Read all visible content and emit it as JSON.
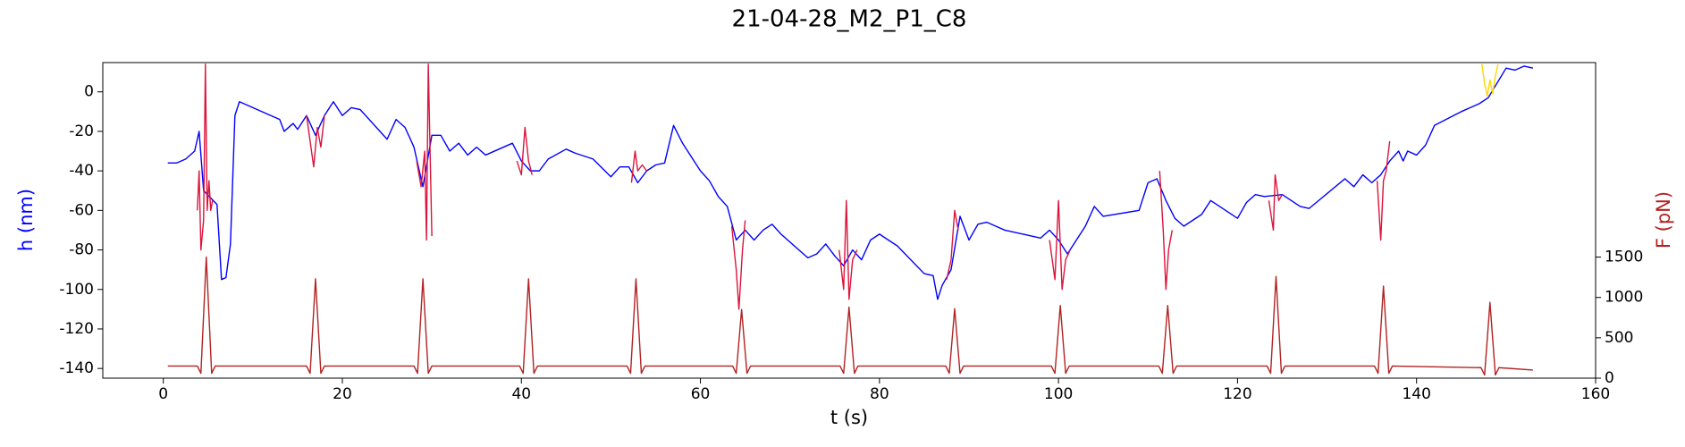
{
  "chart_data": {
    "type": "line",
    "title": "21-04-28_M2_P1_C8",
    "xlabel": "t (s)",
    "ylabel": "h (nm)",
    "y2label": "F (pN)",
    "ylabel_color": "#0000ff",
    "y2label_color": "#b22222",
    "xlim": [
      -6.76,
      160
    ],
    "xticks": [
      0,
      20,
      40,
      60,
      80,
      100,
      120,
      140,
      160
    ],
    "ylim": [
      -144.9,
      14.8
    ],
    "yticks": [
      -140,
      -120,
      -100,
      -80,
      -60,
      -40,
      -20,
      0
    ],
    "y2lim": [
      0,
      3910
    ],
    "y2ticks": [
      0,
      500,
      1000,
      1500
    ],
    "series": [
      {
        "color": "#0000ff",
        "x": [
          0.5,
          1.5,
          2.5,
          3.5,
          4,
          4.5,
          6,
          6.5,
          7,
          7.5,
          8,
          8.5,
          10,
          13,
          13.5,
          14.5,
          15,
          16,
          17,
          18,
          19,
          20,
          21,
          22,
          25,
          26,
          27,
          28,
          29,
          30,
          31,
          32,
          33,
          34,
          35,
          36,
          39,
          40,
          41,
          42,
          43,
          45,
          46,
          48,
          50,
          51,
          52,
          53,
          54,
          55,
          56,
          57,
          58,
          60,
          61,
          62,
          63,
          64,
          65,
          66,
          67,
          68,
          69,
          72,
          73,
          74,
          75,
          76,
          77,
          78,
          79,
          80,
          82,
          85,
          86,
          86.5,
          87,
          88,
          89,
          90,
          91,
          92,
          94,
          96,
          98,
          99,
          100,
          101,
          102,
          103,
          104,
          105,
          109,
          110,
          111,
          112,
          113,
          114,
          116,
          117,
          120,
          121,
          122,
          123,
          125,
          127,
          128,
          132,
          133,
          134,
          135,
          136,
          137,
          138,
          138.5,
          139,
          140,
          141,
          142,
          145,
          146,
          147,
          148,
          150,
          151,
          152,
          153
        ],
        "values": [
          -36,
          -36,
          -34,
          -30,
          -20,
          -50,
          -57,
          -95,
          -94,
          -77,
          -12,
          -5,
          -8,
          -14,
          -20,
          -16,
          -19,
          -12,
          -22,
          -12,
          -5,
          -12,
          -8,
          -9,
          -24,
          -14,
          -18,
          -28,
          -48,
          -22,
          -22,
          -30,
          -26,
          -32,
          -28,
          -32,
          -26,
          -35,
          -40,
          -40,
          -34,
          -29,
          -31,
          -34,
          -43,
          -38,
          -38,
          -46,
          -40,
          -37,
          -36,
          -17,
          -26,
          -40,
          -45,
          -53,
          -58,
          -75,
          -70,
          -75,
          -70,
          -67,
          -72,
          -84,
          -82,
          -77,
          -83,
          -88,
          -80,
          -85,
          -75,
          -72,
          -78,
          -92,
          -93,
          -105,
          -98,
          -90,
          -63,
          -75,
          -67,
          -66,
          -70,
          -72,
          -74,
          -70,
          -75,
          -82,
          -75,
          -68,
          -58,
          -63,
          -60,
          -46,
          -44,
          -55,
          -64,
          -68,
          -62,
          -55,
          -64,
          -56,
          -52,
          -53,
          -52,
          -58,
          -59,
          -44,
          -48,
          -42,
          -46,
          -42,
          -35,
          -30,
          -35,
          -30,
          -32,
          -27,
          -17,
          -10,
          -8,
          -6,
          -3,
          12,
          11,
          13,
          12
        ]
      },
      {
        "color": "#dc143c",
        "x": [
          3.8,
          4,
          4.2,
          4.5,
          4.7,
          4.9,
          5.1,
          5.3,
          5.5,
          null,
          16,
          16.4,
          16.8,
          17.2,
          17.6,
          18,
          null,
          28.3,
          28.8,
          29.2,
          29.4,
          29.6,
          29.8,
          30,
          null,
          39.5,
          40,
          40.4,
          40.8,
          41.2,
          null,
          52.3,
          52.7,
          53,
          53.5,
          54,
          null,
          63.5,
          64,
          64.3,
          64.7,
          65,
          null,
          75.5,
          76,
          76.3,
          76.6,
          77,
          77.5,
          null,
          87.5,
          88,
          88.4,
          88.8,
          null,
          99,
          99.6,
          100,
          100.4,
          100.8,
          101.3,
          null,
          111.3,
          111.7,
          112,
          112.3,
          112.7,
          null,
          123.5,
          124,
          124.2,
          124.6,
          125,
          null,
          135.6,
          136,
          136.3,
          136.6,
          137
        ],
        "values": [
          -60,
          -40,
          -80,
          -65,
          14,
          -60,
          -45,
          -60,
          -55,
          null,
          -12,
          -25,
          -38,
          -18,
          -28,
          -12,
          null,
          -35,
          -48,
          -30,
          -75,
          14,
          -30,
          -73,
          null,
          -35,
          -42,
          -18,
          -35,
          -42,
          null,
          -46,
          -30,
          -40,
          -37,
          -40,
          null,
          -68,
          -90,
          -110,
          -80,
          -65,
          null,
          -80,
          -100,
          -55,
          -105,
          -85,
          -80,
          null,
          -95,
          -85,
          -60,
          -70,
          null,
          -75,
          -95,
          -55,
          -100,
          -85,
          -80,
          null,
          -40,
          -70,
          -100,
          -80,
          -70,
          null,
          -55,
          -70,
          -42,
          -55,
          -52,
          null,
          -45,
          -75,
          -45,
          -40,
          -25
        ]
      },
      {
        "color": "#ffd700",
        "x": [
          147.3,
          147.6,
          147.9,
          148.2,
          148.5,
          148.8,
          149.1
        ],
        "values": [
          14,
          4,
          -2,
          6,
          -1,
          8,
          14
        ]
      },
      {
        "color": "#b22222",
        "axis": "y2",
        "x": [
          0.5,
          3.8,
          4.2,
          4.8,
          5.4,
          5.8,
          7,
          16,
          16.4,
          17,
          17.6,
          18,
          28,
          28.4,
          29,
          29.6,
          30,
          39.8,
          40.2,
          40.8,
          41.4,
          41.8,
          51.8,
          52.2,
          52.8,
          53.4,
          53.8,
          63.6,
          64,
          64.6,
          65.2,
          65.6,
          75.6,
          76,
          76.6,
          77.2,
          77.6,
          87.4,
          87.8,
          88.4,
          89,
          89.4,
          99.2,
          99.6,
          100.2,
          100.8,
          101.2,
          111.2,
          111.6,
          112.2,
          112.8,
          113.2,
          123.3,
          123.7,
          124.3,
          124.9,
          125.3,
          135.3,
          135.7,
          136.3,
          136.9,
          137.3,
          147.2,
          147.6,
          148.2,
          148.8,
          149.2,
          153
        ],
        "values": [
          150,
          150,
          60,
          1500,
          60,
          150,
          150,
          150,
          60,
          1230,
          60,
          150,
          150,
          60,
          1230,
          60,
          150,
          150,
          60,
          1230,
          60,
          150,
          150,
          60,
          1230,
          60,
          150,
          150,
          60,
          850,
          60,
          150,
          150,
          60,
          880,
          60,
          150,
          150,
          60,
          860,
          60,
          150,
          150,
          60,
          900,
          60,
          150,
          150,
          60,
          900,
          60,
          150,
          150,
          60,
          1260,
          60,
          150,
          150,
          60,
          1140,
          60,
          150,
          130,
          40,
          940,
          40,
          130,
          100
        ]
      }
    ]
  }
}
